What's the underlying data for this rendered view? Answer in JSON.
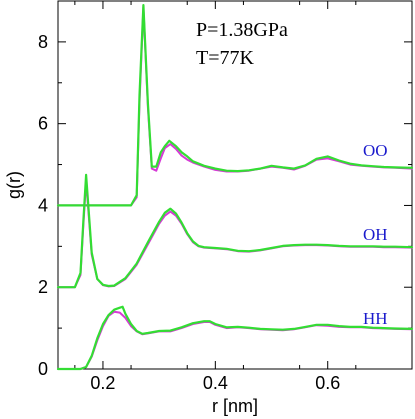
{
  "chart_data": {
    "type": "line",
    "xlabel": "r [nm]",
    "ylabel": "g(r)",
    "xlim": [
      0.12,
      0.75
    ],
    "ylim": [
      0,
      9
    ],
    "xticks": [
      0.2,
      0.4,
      0.6
    ],
    "xtick_labels": [
      "0.2",
      "0.4",
      "0.6"
    ],
    "yticks": [
      0,
      2,
      4,
      6,
      8
    ],
    "ytick_labels": [
      "0",
      "2",
      "4",
      "6",
      "8"
    ],
    "annotations": [
      "P=1.38GPa",
      "T=77K"
    ],
    "colors": {
      "magenta": "#d63ad6",
      "green": "#33dd33",
      "label": "#1a1acc"
    },
    "groups": [
      {
        "label": "OO",
        "offset": 4
      },
      {
        "label": "OH",
        "offset": 2
      },
      {
        "label": "HH",
        "offset": 0
      }
    ],
    "series": [
      {
        "group": "OO",
        "color": "magenta",
        "points": [
          [
            0.12,
            4.0
          ],
          [
            0.25,
            4.0
          ],
          [
            0.26,
            4.2
          ],
          [
            0.265,
            6.5
          ],
          [
            0.272,
            8.85
          ],
          [
            0.28,
            6.4
          ],
          [
            0.287,
            4.9
          ],
          [
            0.295,
            4.85
          ],
          [
            0.303,
            5.15
          ],
          [
            0.31,
            5.4
          ],
          [
            0.32,
            5.5
          ],
          [
            0.33,
            5.38
          ],
          [
            0.34,
            5.22
          ],
          [
            0.35,
            5.12
          ],
          [
            0.36,
            5.05
          ],
          [
            0.38,
            4.95
          ],
          [
            0.4,
            4.87
          ],
          [
            0.42,
            4.83
          ],
          [
            0.44,
            4.83
          ],
          [
            0.46,
            4.85
          ],
          [
            0.48,
            4.9
          ],
          [
            0.5,
            4.95
          ],
          [
            0.52,
            4.92
          ],
          [
            0.54,
            4.88
          ],
          [
            0.56,
            4.97
          ],
          [
            0.58,
            5.12
          ],
          [
            0.6,
            5.15
          ],
          [
            0.62,
            5.08
          ],
          [
            0.64,
            5.0
          ],
          [
            0.66,
            4.97
          ],
          [
            0.68,
            4.95
          ],
          [
            0.7,
            4.93
          ],
          [
            0.72,
            4.92
          ],
          [
            0.75,
            4.9
          ]
        ]
      },
      {
        "group": "OO",
        "color": "green",
        "points": [
          [
            0.12,
            4.0
          ],
          [
            0.25,
            4.0
          ],
          [
            0.26,
            4.25
          ],
          [
            0.265,
            6.7
          ],
          [
            0.272,
            8.9
          ],
          [
            0.28,
            6.5
          ],
          [
            0.287,
            4.95
          ],
          [
            0.295,
            4.95
          ],
          [
            0.303,
            5.3
          ],
          [
            0.31,
            5.45
          ],
          [
            0.318,
            5.58
          ],
          [
            0.33,
            5.45
          ],
          [
            0.34,
            5.3
          ],
          [
            0.35,
            5.2
          ],
          [
            0.36,
            5.08
          ],
          [
            0.38,
            4.97
          ],
          [
            0.4,
            4.9
          ],
          [
            0.42,
            4.85
          ],
          [
            0.44,
            4.84
          ],
          [
            0.46,
            4.86
          ],
          [
            0.48,
            4.9
          ],
          [
            0.5,
            4.97
          ],
          [
            0.52,
            4.93
          ],
          [
            0.54,
            4.9
          ],
          [
            0.56,
            4.98
          ],
          [
            0.58,
            5.14
          ],
          [
            0.6,
            5.2
          ],
          [
            0.62,
            5.1
          ],
          [
            0.64,
            5.02
          ],
          [
            0.66,
            4.98
          ],
          [
            0.68,
            4.96
          ],
          [
            0.7,
            4.94
          ],
          [
            0.72,
            4.93
          ],
          [
            0.75,
            4.92
          ]
        ]
      },
      {
        "group": "OH",
        "color": "magenta",
        "points": [
          [
            0.12,
            2.0
          ],
          [
            0.15,
            2.0
          ],
          [
            0.16,
            2.3
          ],
          [
            0.165,
            3.5
          ],
          [
            0.17,
            4.6
          ],
          [
            0.175,
            3.7
          ],
          [
            0.18,
            2.8
          ],
          [
            0.19,
            2.2
          ],
          [
            0.2,
            2.05
          ],
          [
            0.21,
            2.02
          ],
          [
            0.22,
            2.03
          ],
          [
            0.24,
            2.2
          ],
          [
            0.26,
            2.55
          ],
          [
            0.28,
            3.05
          ],
          [
            0.3,
            3.55
          ],
          [
            0.31,
            3.75
          ],
          [
            0.32,
            3.85
          ],
          [
            0.33,
            3.75
          ],
          [
            0.34,
            3.55
          ],
          [
            0.35,
            3.3
          ],
          [
            0.36,
            3.1
          ],
          [
            0.37,
            3.0
          ],
          [
            0.38,
            2.97
          ],
          [
            0.4,
            2.95
          ],
          [
            0.42,
            2.93
          ],
          [
            0.44,
            2.88
          ],
          [
            0.46,
            2.87
          ],
          [
            0.48,
            2.9
          ],
          [
            0.5,
            2.95
          ],
          [
            0.52,
            3.0
          ],
          [
            0.54,
            3.02
          ],
          [
            0.56,
            3.03
          ],
          [
            0.58,
            3.03
          ],
          [
            0.6,
            3.02
          ],
          [
            0.62,
            3.0
          ],
          [
            0.64,
            2.99
          ],
          [
            0.66,
            2.99
          ],
          [
            0.68,
            2.99
          ],
          [
            0.7,
            2.98
          ],
          [
            0.72,
            2.98
          ],
          [
            0.75,
            2.97
          ]
        ]
      },
      {
        "group": "OH",
        "color": "green",
        "points": [
          [
            0.12,
            2.0
          ],
          [
            0.15,
            2.0
          ],
          [
            0.16,
            2.35
          ],
          [
            0.165,
            3.6
          ],
          [
            0.17,
            4.75
          ],
          [
            0.175,
            3.8
          ],
          [
            0.18,
            2.85
          ],
          [
            0.19,
            2.2
          ],
          [
            0.2,
            2.06
          ],
          [
            0.21,
            2.03
          ],
          [
            0.22,
            2.04
          ],
          [
            0.24,
            2.22
          ],
          [
            0.26,
            2.58
          ],
          [
            0.28,
            3.1
          ],
          [
            0.3,
            3.6
          ],
          [
            0.31,
            3.82
          ],
          [
            0.32,
            3.92
          ],
          [
            0.33,
            3.8
          ],
          [
            0.34,
            3.58
          ],
          [
            0.35,
            3.32
          ],
          [
            0.36,
            3.12
          ],
          [
            0.37,
            3.01
          ],
          [
            0.38,
            2.98
          ],
          [
            0.4,
            2.96
          ],
          [
            0.42,
            2.94
          ],
          [
            0.44,
            2.89
          ],
          [
            0.46,
            2.88
          ],
          [
            0.48,
            2.91
          ],
          [
            0.5,
            2.96
          ],
          [
            0.52,
            3.01
          ],
          [
            0.54,
            3.03
          ],
          [
            0.56,
            3.04
          ],
          [
            0.58,
            3.04
          ],
          [
            0.6,
            3.03
          ],
          [
            0.62,
            3.01
          ],
          [
            0.64,
            3.0
          ],
          [
            0.66,
            3.0
          ],
          [
            0.68,
            3.0
          ],
          [
            0.7,
            2.99
          ],
          [
            0.72,
            2.99
          ],
          [
            0.75,
            2.98
          ]
        ]
      },
      {
        "group": "HH",
        "color": "magenta",
        "points": [
          [
            0.12,
            0.0
          ],
          [
            0.16,
            0.0
          ],
          [
            0.17,
            0.05
          ],
          [
            0.18,
            0.3
          ],
          [
            0.19,
            0.7
          ],
          [
            0.2,
            1.05
          ],
          [
            0.21,
            1.3
          ],
          [
            0.22,
            1.4
          ],
          [
            0.23,
            1.38
          ],
          [
            0.24,
            1.25
          ],
          [
            0.25,
            1.05
          ],
          [
            0.26,
            0.92
          ],
          [
            0.27,
            0.85
          ],
          [
            0.28,
            0.87
          ],
          [
            0.3,
            0.92
          ],
          [
            0.32,
            0.92
          ],
          [
            0.34,
            1.0
          ],
          [
            0.36,
            1.1
          ],
          [
            0.38,
            1.15
          ],
          [
            0.39,
            1.15
          ],
          [
            0.4,
            1.08
          ],
          [
            0.42,
            1.0
          ],
          [
            0.44,
            1.02
          ],
          [
            0.46,
            1.0
          ],
          [
            0.48,
            0.97
          ],
          [
            0.5,
            0.96
          ],
          [
            0.52,
            0.95
          ],
          [
            0.54,
            0.97
          ],
          [
            0.56,
            1.02
          ],
          [
            0.58,
            1.07
          ],
          [
            0.6,
            1.06
          ],
          [
            0.62,
            1.03
          ],
          [
            0.64,
            1.02
          ],
          [
            0.66,
            1.02
          ],
          [
            0.68,
            1.0
          ],
          [
            0.7,
            0.99
          ],
          [
            0.72,
            0.98
          ],
          [
            0.75,
            0.97
          ]
        ]
      },
      {
        "group": "HH",
        "color": "green",
        "points": [
          [
            0.12,
            0.0
          ],
          [
            0.16,
            0.0
          ],
          [
            0.17,
            0.05
          ],
          [
            0.18,
            0.32
          ],
          [
            0.19,
            0.75
          ],
          [
            0.2,
            1.1
          ],
          [
            0.21,
            1.32
          ],
          [
            0.22,
            1.45
          ],
          [
            0.23,
            1.5
          ],
          [
            0.235,
            1.52
          ],
          [
            0.24,
            1.35
          ],
          [
            0.25,
            1.1
          ],
          [
            0.26,
            0.93
          ],
          [
            0.27,
            0.86
          ],
          [
            0.28,
            0.88
          ],
          [
            0.3,
            0.93
          ],
          [
            0.32,
            0.94
          ],
          [
            0.34,
            1.02
          ],
          [
            0.36,
            1.12
          ],
          [
            0.38,
            1.17
          ],
          [
            0.39,
            1.17
          ],
          [
            0.4,
            1.1
          ],
          [
            0.42,
            1.02
          ],
          [
            0.44,
            1.03
          ],
          [
            0.46,
            1.01
          ],
          [
            0.48,
            0.98
          ],
          [
            0.5,
            0.97
          ],
          [
            0.52,
            0.96
          ],
          [
            0.54,
            0.98
          ],
          [
            0.56,
            1.03
          ],
          [
            0.58,
            1.08
          ],
          [
            0.6,
            1.08
          ],
          [
            0.62,
            1.05
          ],
          [
            0.64,
            1.03
          ],
          [
            0.66,
            1.03
          ],
          [
            0.68,
            1.01
          ],
          [
            0.7,
            1.0
          ],
          [
            0.72,
            0.99
          ],
          [
            0.75,
            0.98
          ]
        ]
      }
    ]
  }
}
